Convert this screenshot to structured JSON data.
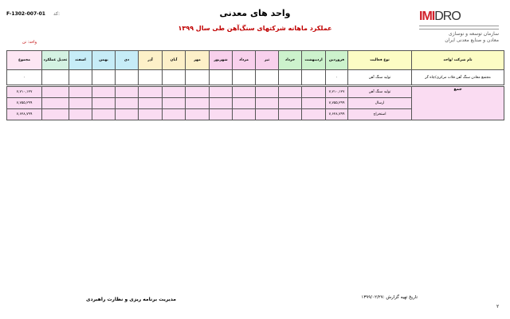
{
  "header": {
    "title": "واحد های معدنی",
    "subtitle": "عملکرد ماهانه شرکتهای سنگ‌آهن طی سال ۱۳۹۹",
    "code_label": "کد:",
    "code": "F-1302-007-01",
    "unit": "واحد: تن"
  },
  "logo": {
    "text": "IMIDRO",
    "org_line1": "سازمان توسعه و نوسازی",
    "org_line2": "معادن و صنایع معدنی ایران"
  },
  "table": {
    "columns": [
      "نام شرکت /واحد",
      "نوع فعالیت",
      "فروردین",
      "اردیبهشت",
      "خرداد",
      "تیر",
      "مرداد",
      "شهریور",
      "مهر",
      "آبان",
      "آذر",
      "دی",
      "بهمن",
      "اسفند",
      "تعدیل عملکرد",
      "مجموع"
    ],
    "row": {
      "company": "مجتمع معادن سنگ آهن فلات مرکزی/چاه گز",
      "activity": "تولید سنگ آهن",
      "farvardin": "۰",
      "total": "۰"
    },
    "summary_label": "جمع",
    "summary": [
      {
        "activity": "تولید سنگ آهن",
        "farvardin": "۷,۷۱۰,۱۲۷",
        "total": "۷,۷۱۰,۱۲۷"
      },
      {
        "activity": "ارسال",
        "farvardin": "۷,۷۵۵,۲۹۹",
        "total": "۷,۷۵۵,۲۹۹"
      },
      {
        "activity": "استخراج",
        "farvardin": "۷,۶۲۸,۷۹۹",
        "total": "۷,۶۲۸,۷۹۹"
      }
    ]
  },
  "footer": {
    "department": "مدیریت برنامه ریزی و نظارت راهبردی",
    "report_date": "تاریخ تهیه گزارش :۱۳۹۹/۰۲/۲۷",
    "page": "۲"
  }
}
